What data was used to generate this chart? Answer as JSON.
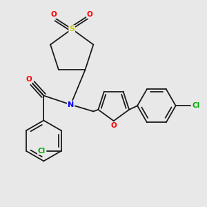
{
  "background_color": "#e8e8e8",
  "bond_color": "#1a1a1a",
  "atom_colors": {
    "N": "#0000ff",
    "O": "#ff0000",
    "S": "#cccc00",
    "Cl": "#00aa00",
    "C": "#1a1a1a"
  },
  "figsize": [
    3.0,
    3.0
  ],
  "dpi": 100
}
